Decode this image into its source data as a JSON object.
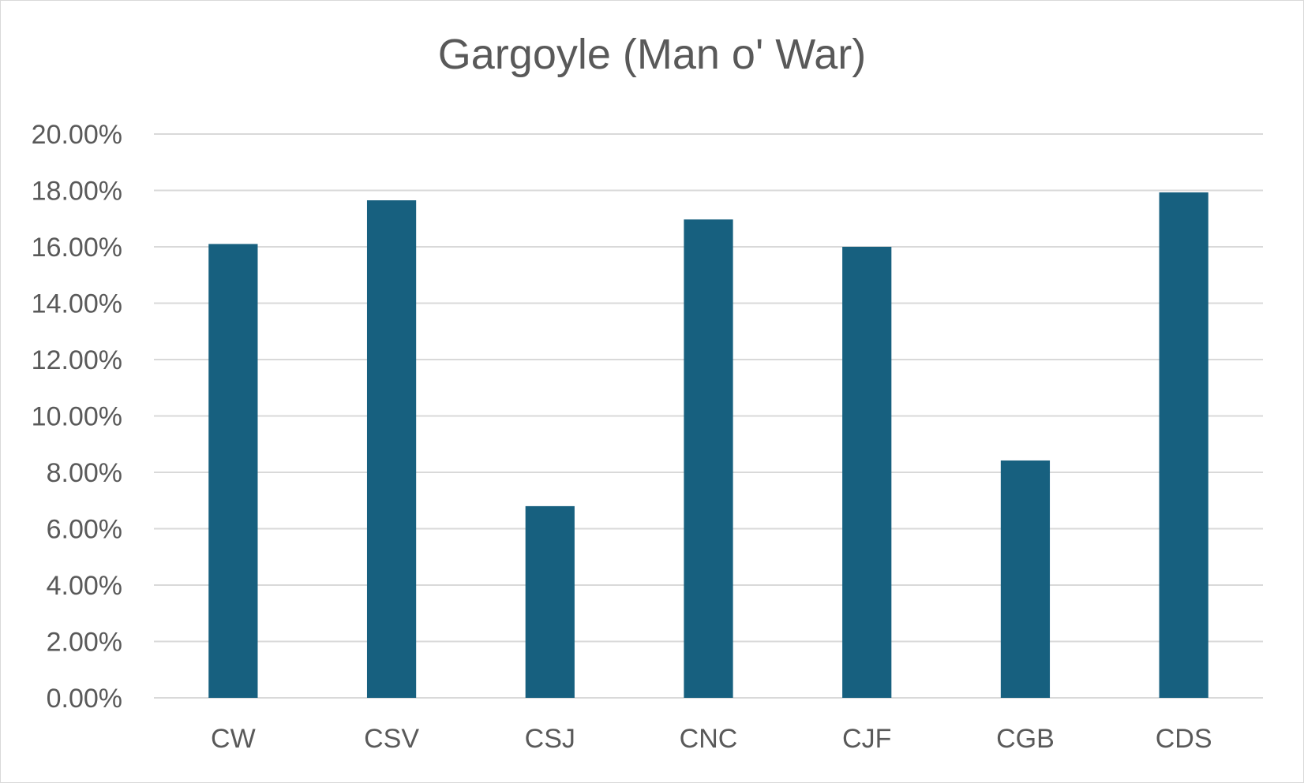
{
  "chart_data": {
    "type": "bar",
    "title": "Gargoyle (Man o' War)",
    "xlabel": "",
    "ylabel": "",
    "categories": [
      "CW",
      "CSV",
      "CSJ",
      "CNC",
      "CJF",
      "CGB",
      "CDS"
    ],
    "values": [
      16.1,
      17.65,
      6.8,
      16.97,
      16.0,
      8.42,
      17.93
    ],
    "ylim": [
      0,
      20
    ],
    "yticks": [
      "0.00%",
      "2.00%",
      "4.00%",
      "6.00%",
      "8.00%",
      "10.00%",
      "12.00%",
      "14.00%",
      "16.00%",
      "18.00%",
      "20.00%"
    ],
    "grid": true,
    "legend": "none",
    "colors": {
      "bar": "#17607f",
      "grid": "#d9d9d9",
      "text": "#595959"
    }
  }
}
